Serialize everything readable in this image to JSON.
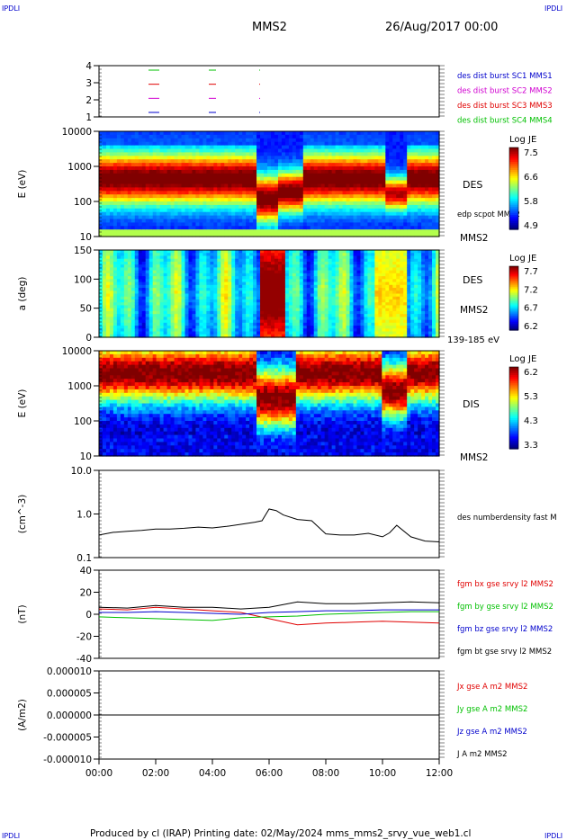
{
  "header": {
    "corner_left": "IPDLI",
    "corner_right": "IPDLI",
    "mission": "MMS2",
    "datetime": "26/Aug/2017 00:00"
  },
  "footer": {
    "text": "Produced by cl (IRAP)   Printing date: 02/May/2024   mms_mms2_srvy_vue_web1.cl",
    "corner_left": "IPDLI",
    "corner_right": "IPDLI"
  },
  "colors": {
    "red": "#e00000",
    "green": "#00c000",
    "blue": "#0000cc",
    "magenta": "#d000d0",
    "black": "#000000"
  },
  "chart_data": [
    {
      "id": "availability",
      "type": "line",
      "yticks": [
        "1",
        "2",
        "3",
        "4"
      ],
      "legend": [
        {
          "label": "des dist burst SC1 MMS1",
          "color": "#0000cc"
        },
        {
          "label": "des dist burst SC2 MMS2",
          "color": "#d000d0"
        },
        {
          "label": "des dist burst SC3 MMS3",
          "color": "#e00000"
        },
        {
          "label": "des dist burst SC4 MMS4",
          "color": "#00c000"
        }
      ]
    },
    {
      "id": "des_energy",
      "type": "heatmap",
      "yticks": [
        "10000",
        "1000",
        "100",
        "10"
      ],
      "ylabel": "E (eV)",
      "right_label": "DES",
      "right_sub": "edp scpot MMS2",
      "right_bottom": "MMS2",
      "colorbar": {
        "title": "Log JE",
        "ticks": [
          "7.5",
          "6.6",
          "5.8",
          "4.9"
        ]
      }
    },
    {
      "id": "des_pitch",
      "type": "heatmap",
      "yticks": [
        "150",
        "100",
        "50",
        "0"
      ],
      "ylabel": "a (deg)",
      "right_label": "DES",
      "right_sub": "MMS2",
      "right_bottom": "139-185 eV",
      "colorbar": {
        "title": "Log JE",
        "ticks": [
          "7.7",
          "7.2",
          "6.7",
          "6.2"
        ]
      }
    },
    {
      "id": "dis_energy",
      "type": "heatmap",
      "yticks": [
        "10000",
        "1000",
        "100",
        "10"
      ],
      "ylabel": "E (eV)",
      "right_label": "DIS",
      "right_bottom": "MMS2",
      "colorbar": {
        "title": "Log JE",
        "ticks": [
          "6.2",
          "5.3",
          "4.3",
          "3.3"
        ]
      }
    },
    {
      "id": "density",
      "type": "line",
      "yticks": [
        "10.0",
        "1.0",
        "0.1"
      ],
      "ylabel": "(cm^-3)",
      "ylim": [
        0.1,
        10
      ],
      "yscale": "log",
      "legend": [
        {
          "label": "des numberdensity fast M",
          "color": "#000000"
        }
      ],
      "series": [
        {
          "x": [
            "00:00",
            "00:30",
            "01:00",
            "01:30",
            "02:00",
            "02:30",
            "03:00",
            "03:30",
            "04:00",
            "04:30",
            "05:00",
            "05:30",
            "05:45",
            "06:00",
            "06:15",
            "06:30",
            "07:00",
            "07:30",
            "08:00",
            "08:30",
            "09:00",
            "09:30",
            "10:00",
            "10:15",
            "10:30",
            "11:00",
            "11:30",
            "12:00"
          ],
          "values": [
            0.33,
            0.38,
            0.4,
            0.42,
            0.45,
            0.45,
            0.47,
            0.5,
            0.48,
            0.52,
            0.58,
            0.65,
            0.7,
            1.3,
            1.2,
            0.95,
            0.75,
            0.7,
            0.35,
            0.33,
            0.33,
            0.36,
            0.3,
            0.37,
            0.55,
            0.3,
            0.24,
            0.23
          ]
        }
      ]
    },
    {
      "id": "magnetic",
      "type": "line",
      "yticks": [
        "40",
        "20",
        "0",
        "-20",
        "-40"
      ],
      "ylabel": "(nT)",
      "ylim": [
        -50,
        50
      ],
      "legend": [
        {
          "label": "fgm bx gse srvy l2 MMS2",
          "color": "#e00000"
        },
        {
          "label": "fgm by gse srvy l2 MMS2",
          "color": "#00c000"
        },
        {
          "label": "fgm bz gse srvy l2 MMS2",
          "color": "#0000cc"
        },
        {
          "label": "fgm bt gse srvy l2 MMS2",
          "color": "#000000"
        }
      ],
      "x": [
        "00:00",
        "01:00",
        "02:00",
        "03:00",
        "04:00",
        "05:00",
        "06:00",
        "07:00",
        "08:00",
        "09:00",
        "10:00",
        "11:00",
        "12:00"
      ],
      "series": [
        {
          "name": "fgm bx gse srvy l2 MMS2",
          "values": [
            6,
            5,
            8,
            6,
            4,
            2,
            -5,
            -12,
            -10,
            -9,
            -8,
            -9,
            -10
          ]
        },
        {
          "name": "fgm by gse srvy l2 MMS2",
          "values": [
            -3,
            -4,
            -5,
            -6,
            -7,
            -4,
            -3,
            -2,
            0,
            1,
            2,
            3,
            3
          ]
        },
        {
          "name": "fgm bz gse srvy l2 MMS2",
          "values": [
            2,
            2,
            3,
            2,
            1,
            0,
            2,
            3,
            4,
            4,
            5,
            5,
            5
          ]
        },
        {
          "name": "fgm bt gse srvy l2 MMS2",
          "values": [
            8,
            7,
            10,
            8,
            8,
            6,
            8,
            14,
            12,
            12,
            13,
            14,
            13
          ]
        }
      ]
    },
    {
      "id": "current",
      "type": "line",
      "yticks": [
        "0.000010",
        "0.000005",
        "0.000000",
        "-0.000005",
        "-0.000010"
      ],
      "ylabel": "(A/m2)",
      "ylim": [
        -1e-05,
        1e-05
      ],
      "legend": [
        {
          "label": "Jx gse A m2 MMS2",
          "color": "#e00000"
        },
        {
          "label": "Jy gse A m2 MMS2",
          "color": "#00c000"
        },
        {
          "label": "Jz gse A m2 MMS2",
          "color": "#0000cc"
        },
        {
          "label": "J A m2 MMS2",
          "color": "#000000"
        }
      ],
      "xticks": [
        "00:00",
        "02:00",
        "04:00",
        "06:00",
        "08:00",
        "10:00",
        "12:00"
      ]
    }
  ]
}
